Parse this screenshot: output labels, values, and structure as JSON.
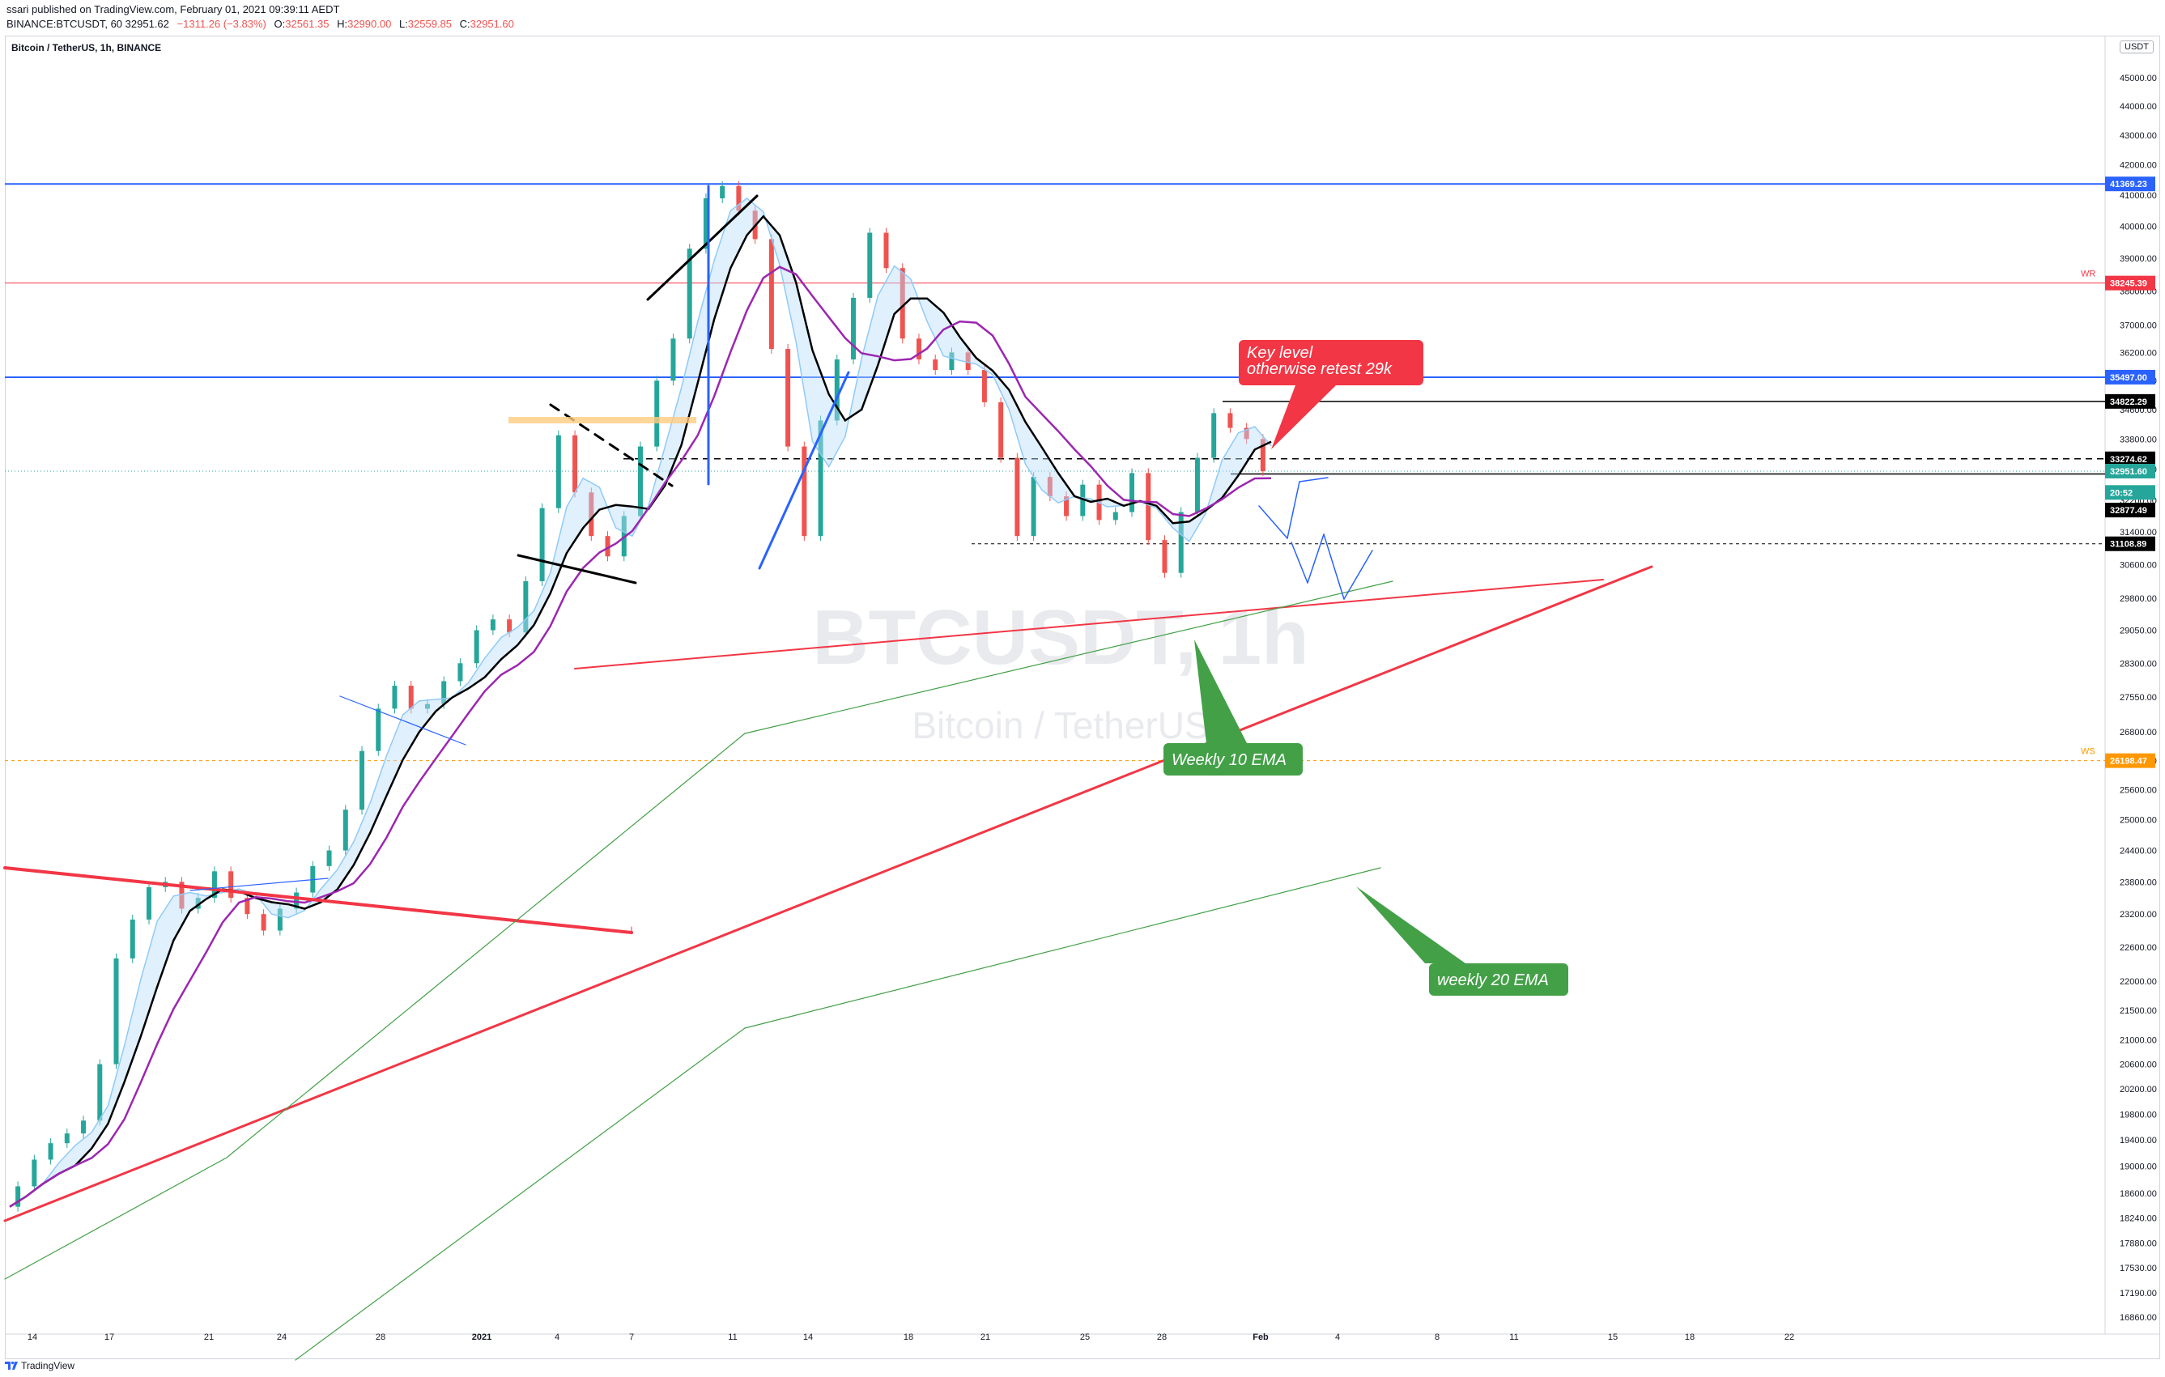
{
  "header": {
    "published": "ssari published on TradingView.com, February 01, 2021 09:39:11 AEDT",
    "symbol": "BINANCE:BTCUSDT, 60",
    "last": "32951.62",
    "change": "−1311.26 (−3.83%)",
    "o_label": "O:",
    "o_value": "32561.35",
    "h_label": "H:",
    "h_value": "32990.00",
    "l_label": "L:",
    "l_value": "32559.85",
    "c_label": "C:",
    "c_value": "32951.60"
  },
  "legend": {
    "title": "Bitcoin / TetherUS, 1h, BINANCE",
    "currency": "USDT"
  },
  "footer": {
    "brand": "TradingView"
  },
  "chart_data": {
    "type": "candlestick",
    "symbol": "BTCUSDT",
    "interval": "1h",
    "watermark": {
      "line1": "BTCUSDT, 1h",
      "line2": "Bitcoin / TetherUS"
    },
    "y_axis": {
      "scale": "log",
      "ticks": [
        "45000.00",
        "44000.00",
        "43000.00",
        "42000.00",
        "41000.00",
        "40000.00",
        "39000.00",
        "38000.00",
        "37000.00",
        "36200.00",
        "35400.00",
        "34600.00",
        "33800.00",
        "33000.00",
        "32200.00",
        "31400.00",
        "30600.00",
        "29800.00",
        "29050.00",
        "28300.00",
        "27550.00",
        "26800.00",
        "26200.00",
        "25600.00",
        "25000.00",
        "24400.00",
        "23800.00",
        "23200.00",
        "22600.00",
        "22000.00",
        "21500.00",
        "21000.00",
        "20600.00",
        "20200.00",
        "19800.00",
        "19400.00",
        "19000.00",
        "18600.00",
        "18240.00",
        "17880.00",
        "17530.00",
        "17190.00",
        "16860.00"
      ]
    },
    "x_axis": {
      "ticks": [
        "14",
        "17",
        "21",
        "24",
        "28",
        "2021",
        "4",
        "7",
        "11",
        "14",
        "18",
        "21",
        "25",
        "28",
        "Feb",
        "4",
        "8",
        "11",
        "15",
        "18",
        "22"
      ]
    },
    "price_labels": [
      {
        "value": "41369.23",
        "color": "#2962ff"
      },
      {
        "value": "38245.39",
        "color": "#f23645",
        "tag": "WR"
      },
      {
        "value": "35497.00",
        "color": "#2962ff"
      },
      {
        "value": "34822.29",
        "color": "#000000"
      },
      {
        "value": "33274.62",
        "color": "#000000"
      },
      {
        "value": "32951.60",
        "color": "#26a69a"
      },
      {
        "value": "20:52",
        "color": "#26a69a"
      },
      {
        "value": "32877.49",
        "color": "#000000"
      },
      {
        "value": "31108.89",
        "color": "#000000"
      },
      {
        "value": "26198.47",
        "color": "#ff9800",
        "tag": "WS"
      }
    ],
    "annotations": [
      {
        "text": [
          "Key level",
          "otherwise retest 29k"
        ],
        "color": "#f23645"
      },
      {
        "text": [
          "Weekly 10 EMA"
        ],
        "color": "#43a047"
      },
      {
        "text": [
          "weekly 20 EMA"
        ],
        "color": "#43a047"
      }
    ],
    "price_series": [
      18400,
      18700,
      19100,
      19350,
      19500,
      19700,
      20600,
      22400,
      23100,
      23700,
      23800,
      23300,
      23500,
      24000,
      23500,
      23200,
      22900,
      23300,
      23600,
      24100,
      24400,
      25200,
      26400,
      27300,
      27800,
      27300,
      27400,
      27900,
      28300,
      29050,
      29300,
      29000,
      30200,
      32000,
      33900,
      32400,
      31300,
      30800,
      31800,
      33600,
      35400,
      36600,
      39300,
      40900,
      41300,
      40500,
      39600,
      36300,
      33600,
      31300,
      34300,
      36000,
      37800,
      39800,
      38700,
      36600,
      36000,
      35700,
      36200,
      35700,
      34800,
      33300,
      31300,
      32800,
      32300,
      31800,
      32600,
      31700,
      31900,
      32900,
      31200,
      30400,
      31900,
      33300,
      34500,
      34100,
      33800,
      32950
    ]
  }
}
